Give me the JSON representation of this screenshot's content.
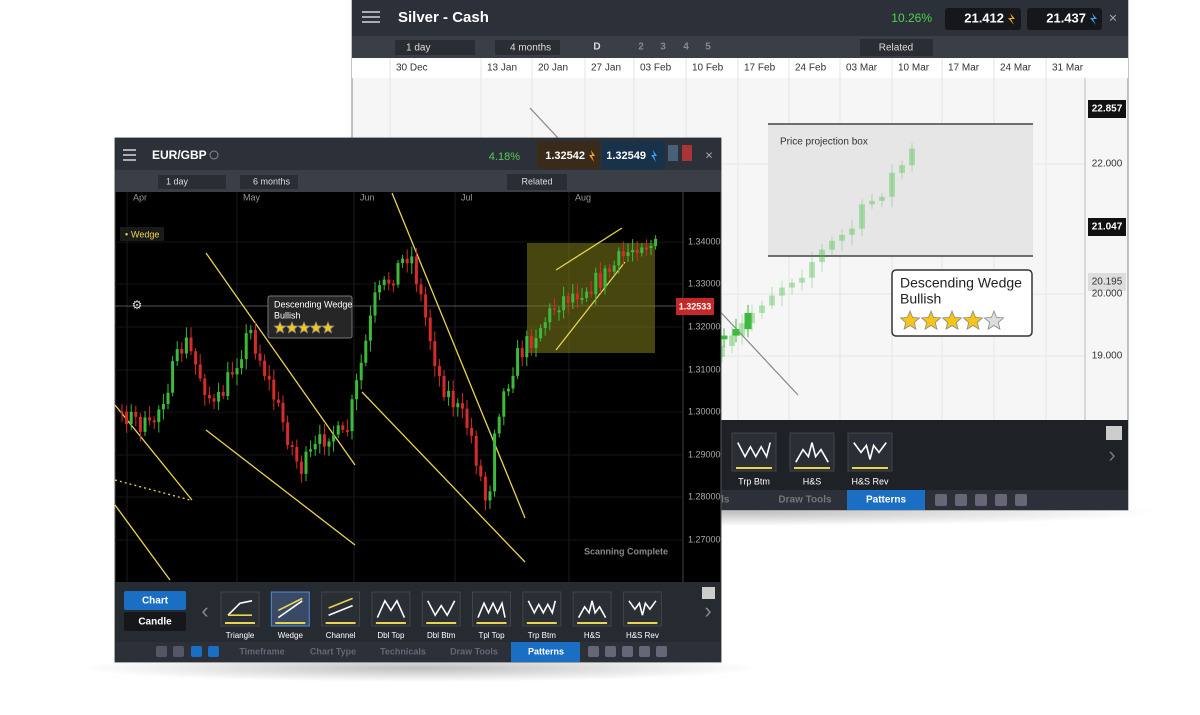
{
  "back_window": {
    "title": "Silver - Cash",
    "change": "10.26%",
    "bid": "21.412",
    "ask": "21.437",
    "timeframe": "1 day",
    "period": "4 months",
    "toolbar_buttons": [
      "D",
      "2",
      "3",
      "4",
      "5"
    ],
    "related": "Related",
    "dates": [
      "30 Dec",
      "13 Jan",
      "20 Jan",
      "27 Jan",
      "03 Feb",
      "10 Feb",
      "17 Feb",
      "24 Feb",
      "03 Mar",
      "10 Mar",
      "17 Mar",
      "24 Mar",
      "31 Mar"
    ],
    "price_labels": [
      "22.857",
      "22.000",
      "21.047",
      "20.195",
      "20.000",
      "19.000"
    ],
    "price_box_label": "Price projection box",
    "pattern_label": [
      "Descending Wedge",
      "Bullish"
    ],
    "rating": 4,
    "patterns": [
      "Trp Btm",
      "H&S",
      "H&S Rev"
    ],
    "tabs": [
      "Technicals",
      "Draw Tools",
      "Patterns"
    ]
  },
  "front_window": {
    "title": "EUR/GBP",
    "change": "4.18%",
    "bid": "1.32542",
    "ask": "1.32549",
    "timeframe": "1 day",
    "period": "6 months",
    "related": "Related",
    "months": [
      "Apr",
      "May",
      "Jun",
      "Jul",
      "Aug"
    ],
    "tag": "Wedge",
    "price_labels": [
      "1.34000",
      "1.33000",
      "1.32000",
      "1.31000",
      "1.30000",
      "1.29000",
      "1.28000",
      "1.27000"
    ],
    "current_price": "1.32533",
    "pattern_label": [
      "Descending Wedge",
      "Bullish"
    ],
    "rating": 5,
    "status": "Scanning Complete",
    "chart_modes": [
      "Chart",
      "Candle"
    ],
    "patterns": [
      "Triangle",
      "Wedge",
      "Channel",
      "Dbl Top",
      "Dbl Btm",
      "Tpl Top",
      "Trp Btm",
      "H&S",
      "H&S Rev"
    ],
    "tabs": [
      "Timeframe",
      "Chart Type",
      "Technicals",
      "Draw Tools",
      "Patterns"
    ]
  }
}
